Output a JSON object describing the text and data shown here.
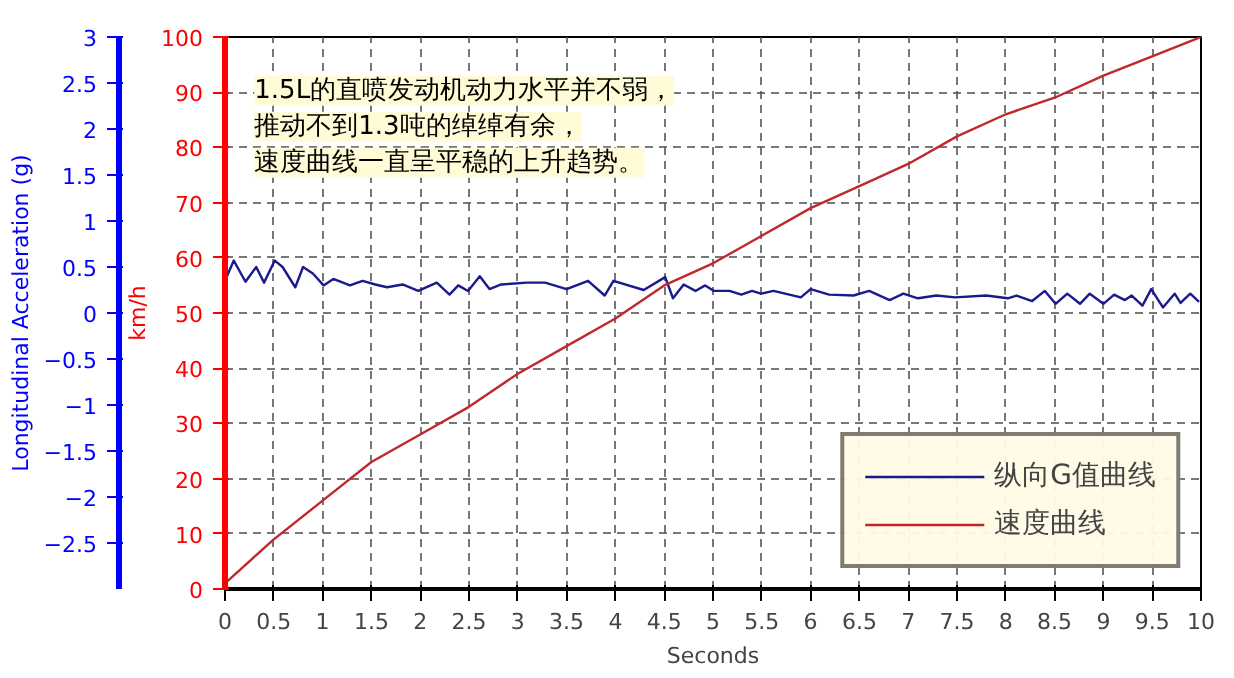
{
  "chart_data": {
    "type": "line",
    "xlabel": "Seconds",
    "ylabel": "km/h",
    "y2label": "Longitudinal Acceleration (g)",
    "xlim": [
      0,
      10
    ],
    "xticks": [
      0,
      0.5,
      1,
      1.5,
      2,
      2.5,
      3,
      3.5,
      4,
      4.5,
      5,
      5.5,
      6,
      6.5,
      7,
      7.5,
      8,
      8.5,
      9,
      9.5,
      10
    ],
    "ylim": [
      0,
      100
    ],
    "yticks": [
      0,
      10,
      20,
      30,
      40,
      50,
      60,
      70,
      80,
      90,
      100
    ],
    "y2lim": [
      -3,
      3
    ],
    "y2ticks": [
      -2.5,
      -2,
      -1.5,
      -1,
      -0.5,
      0,
      0.5,
      1,
      1.5,
      2,
      2.5,
      3
    ],
    "grid": true,
    "legend": "bottom right",
    "line_style": "solid",
    "annotations": [
      "1.5L的直喷发动机动力水平并不弱，",
      "推动不到1.3吨的绰绰有余，",
      "速度曲线一直呈平稳的上升趋势。"
    ],
    "series": [
      {
        "name": "纵向G值曲线",
        "color": "#1a1a8c",
        "axis": "y2",
        "x": [
          0.02,
          0.09,
          0.21,
          0.32,
          0.4,
          0.51,
          0.59,
          0.72,
          0.8,
          0.9,
          1.01,
          1.11,
          1.28,
          1.41,
          1.54,
          1.66,
          1.82,
          1.98,
          2.17,
          2.3,
          2.39,
          2.49,
          2.61,
          2.71,
          2.83,
          3.09,
          3.28,
          3.5,
          3.72,
          3.89,
          3.98,
          4.29,
          4.51,
          4.59,
          4.7,
          4.82,
          4.92,
          5.01,
          5.17,
          5.29,
          5.4,
          5.49,
          5.62,
          5.9,
          6.0,
          6.19,
          6.44,
          6.6,
          6.81,
          6.95,
          7.1,
          7.29,
          7.48,
          7.8,
          8.02,
          8.11,
          8.27,
          8.4,
          8.51,
          8.63,
          8.76,
          8.86,
          9.0,
          9.11,
          9.22,
          9.29,
          9.4,
          9.49,
          9.61,
          9.73,
          9.79,
          9.89,
          9.98
        ],
        "values": [
          0.4,
          0.57,
          0.34,
          0.5,
          0.33,
          0.57,
          0.5,
          0.28,
          0.5,
          0.43,
          0.3,
          0.37,
          0.3,
          0.35,
          0.31,
          0.28,
          0.31,
          0.24,
          0.33,
          0.2,
          0.3,
          0.24,
          0.4,
          0.26,
          0.31,
          0.33,
          0.33,
          0.26,
          0.35,
          0.19,
          0.35,
          0.25,
          0.39,
          0.16,
          0.31,
          0.24,
          0.3,
          0.24,
          0.24,
          0.2,
          0.24,
          0.21,
          0.24,
          0.17,
          0.26,
          0.2,
          0.19,
          0.24,
          0.14,
          0.21,
          0.16,
          0.19,
          0.17,
          0.19,
          0.16,
          0.19,
          0.13,
          0.24,
          0.1,
          0.21,
          0.1,
          0.21,
          0.1,
          0.2,
          0.14,
          0.19,
          0.08,
          0.26,
          0.06,
          0.21,
          0.11,
          0.21,
          0.12
        ]
      },
      {
        "name": "速度曲线",
        "color": "#c0282d",
        "x": [
          0,
          0.5,
          1,
          1.5,
          2,
          2.5,
          3,
          3.5,
          4,
          4.5,
          5,
          5.5,
          6,
          6.5,
          7,
          7.5,
          8,
          8.5,
          9,
          9.5,
          10
        ],
        "values": [
          1,
          9,
          16,
          23,
          28,
          33,
          39,
          44,
          49,
          55,
          59,
          64,
          69,
          73,
          77,
          82,
          86,
          89,
          93,
          96.5,
          100
        ]
      }
    ]
  }
}
